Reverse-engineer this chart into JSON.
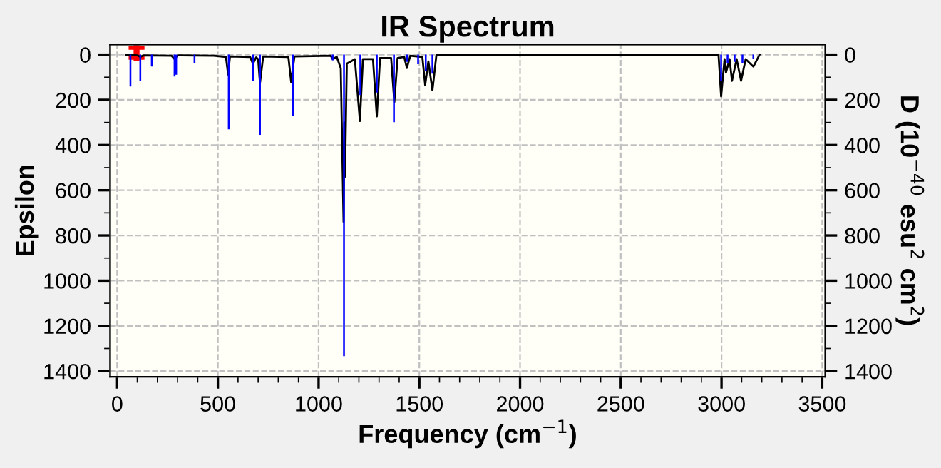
{
  "chart_data": {
    "type": "line",
    "title": "IR Spectrum",
    "xlabel": "Frequency (cm$^{−1}$)",
    "ylabel": "Epsilon",
    "y2label": "D (10$^{−40}$ esu$^{2}$ cm$^{2}$)",
    "xlim": [
      -35,
      3515
    ],
    "ylim": [
      1425,
      -45
    ],
    "y2lim": [
      1425,
      -45
    ],
    "xticks": [
      0,
      {
        "value": 100,
        "label": null
      },
      {
        "value": 200,
        "label": null
      },
      {
        "value": 300,
        "label": null
      },
      {
        "value": 400,
        "label": null
      },
      500,
      {
        "value": 600,
        "label": null
      },
      {
        "value": 700,
        "label": null
      },
      {
        "value": 800,
        "label": null
      },
      {
        "value": 900,
        "label": null
      },
      1000,
      {
        "value": 1100,
        "label": null
      },
      {
        "value": 1200,
        "label": null
      },
      {
        "value": 1300,
        "label": null
      },
      {
        "value": 1400,
        "label": null
      },
      1500,
      {
        "value": 1600,
        "label": null
      },
      {
        "value": 1700,
        "label": null
      },
      {
        "value": 1800,
        "label": null
      },
      {
        "value": 1900,
        "label": null
      },
      2000,
      {
        "value": 2100,
        "label": null
      },
      {
        "value": 2200,
        "label": null
      },
      {
        "value": 2300,
        "label": null
      },
      {
        "value": 2400,
        "label": null
      },
      2500,
      {
        "value": 2600,
        "label": null
      },
      {
        "value": 2700,
        "label": null
      },
      {
        "value": 2800,
        "label": null
      },
      {
        "value": 2900,
        "label": null
      },
      3000,
      {
        "value": 3100,
        "label": null
      },
      {
        "value": 3200,
        "label": null
      },
      {
        "value": 3300,
        "label": null
      },
      {
        "value": 3400,
        "label": null
      },
      3500
    ],
    "yticks": [
      0,
      {
        "value": 100,
        "label": null
      },
      200,
      {
        "value": 300,
        "label": null
      },
      400,
      {
        "value": 500,
        "label": null
      },
      600,
      {
        "value": 700,
        "label": null
      },
      800,
      {
        "value": 900,
        "label": null
      },
      1000,
      {
        "value": 1100,
        "label": null
      },
      1200,
      {
        "value": 1300,
        "label": null
      },
      1400
    ],
    "y2ticks": [
      0,
      {
        "value": 100,
        "label": null
      },
      200,
      {
        "value": 300,
        "label": null
      },
      400,
      {
        "value": 500,
        "label": null
      },
      600,
      {
        "value": 700,
        "label": null
      },
      800,
      {
        "value": 900,
        "label": null
      },
      1000,
      {
        "value": 1100,
        "label": null
      },
      1200,
      {
        "value": 1300,
        "label": null
      },
      1400
    ],
    "grid": true,
    "legend": false,
    "series": [
      {
        "type": "bar",
        "axis": "y2",
        "color": "#0000ff",
        "x": [
          66,
          115,
          172,
          285,
          293,
          384,
          554,
          674,
          709,
          872,
          1070,
          1126,
          1207,
          1289,
          1374,
          1440,
          1494,
          1532,
          1565,
          2998,
          3030,
          3065,
          3104,
          3158
        ],
        "values": [
          141,
          116,
          53,
          97,
          89,
          38,
          330,
          116,
          355,
          273,
          25,
          1334,
          179,
          168,
          299,
          32,
          42,
          74,
          84,
          116,
          38,
          32,
          38,
          19
        ]
      },
      {
        "color": "#000000",
        "x": [
          45,
          100,
          115,
          130,
          270,
          285,
          300,
          480,
          540,
          551,
          560,
          660,
          674,
          690,
          700,
          709,
          725,
          850,
          864,
          880,
          1060,
          1070,
          1090,
          1110,
          1124,
          1128,
          1131,
          1140,
          1180,
          1205,
          1220,
          1270,
          1289,
          1305,
          1360,
          1376,
          1392,
          1425,
          1438,
          1455,
          1515,
          1529,
          1545,
          1565,
          1585,
          2985,
          2998,
          3015,
          3022,
          3040,
          3052,
          3075,
          3097,
          3120,
          3158,
          3189
        ],
        "values": [
          0,
          3,
          10,
          3,
          5,
          20,
          3,
          5,
          10,
          88,
          8,
          10,
          40,
          12,
          20,
          126,
          8,
          10,
          122,
          8,
          5,
          20,
          10,
          60,
          740,
          300,
          540,
          40,
          20,
          294,
          20,
          20,
          273,
          15,
          15,
          210,
          15,
          10,
          59,
          5,
          10,
          135,
          30,
          158,
          0,
          0,
          185,
          20,
          80,
          20,
          116,
          20,
          116,
          20,
          53,
          0
        ]
      }
    ]
  }
}
